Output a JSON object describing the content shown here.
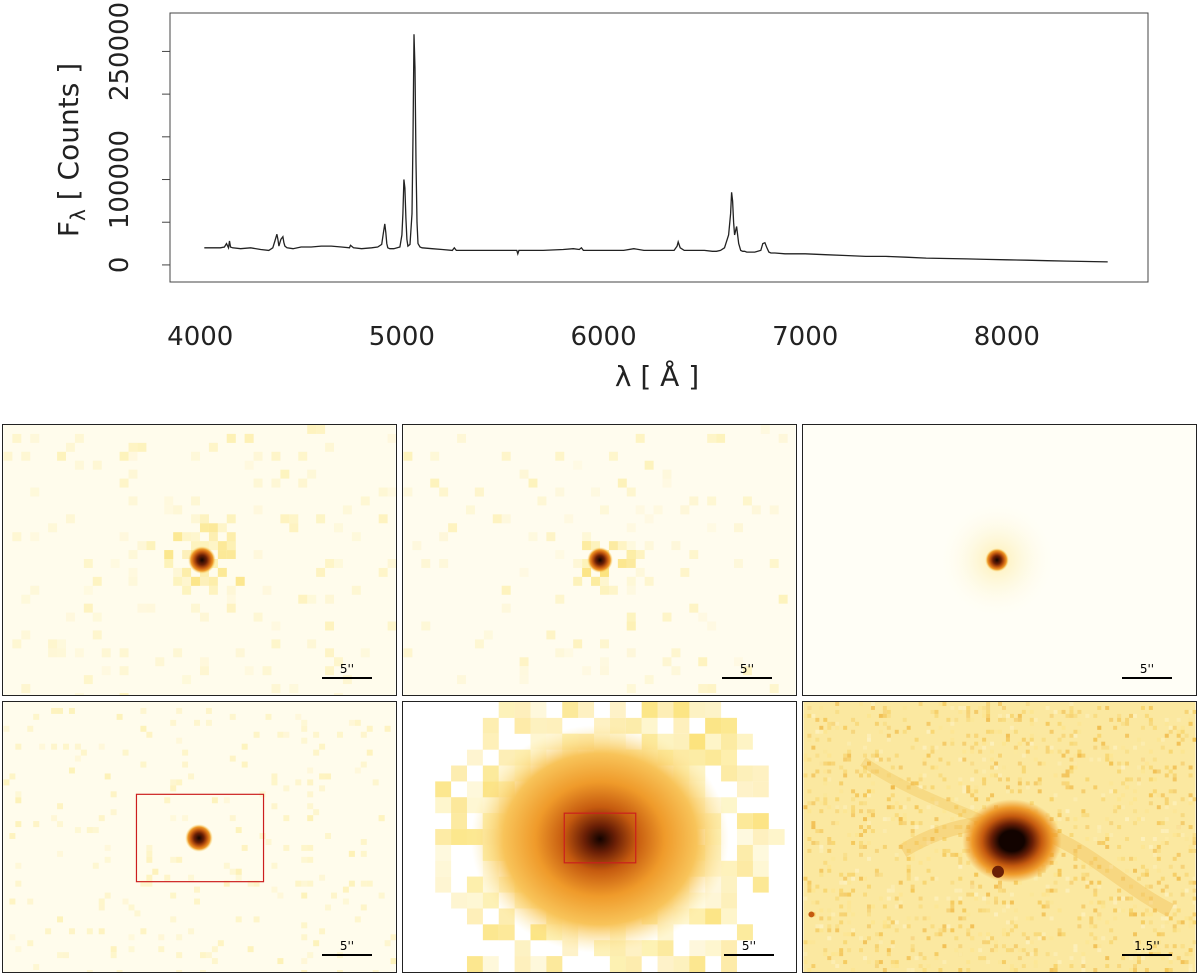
{
  "chart_data": {
    "type": "line",
    "xlabel": "λ [ Å ]",
    "ylabel_main": "F",
    "ylabel_sub": "λ",
    "ylabel_rest": " [ Counts ]",
    "xlim": [
      3850,
      8700
    ],
    "ylim": [
      -20000,
      295000
    ],
    "xticks": [
      4000,
      5000,
      6000,
      7000,
      8000
    ],
    "yticks": [
      0,
      100000,
      250000
    ],
    "yticks_minor": [
      50000,
      150000,
      200000
    ],
    "series": [
      {
        "x": [
          4020,
          4060,
          4100,
          4120,
          4130,
          4140,
          4145,
          4150,
          4160,
          4200,
          4250,
          4300,
          4340,
          4360,
          4370,
          4380,
          4385,
          4390,
          4400,
          4410,
          4415,
          4420,
          4430,
          4460,
          4500,
          4550,
          4600,
          4650,
          4700,
          4740,
          4745,
          4760,
          4800,
          4850,
          4880,
          4900,
          4910,
          4915,
          4920,
          4925,
          4930,
          4940,
          4960,
          4990,
          5000,
          5005,
          5010,
          5015,
          5020,
          5025,
          5030,
          5040,
          5050,
          5055,
          5060,
          5065,
          5070,
          5075,
          5080,
          5090,
          5100,
          5150,
          5200,
          5250,
          5260,
          5270,
          5300,
          5400,
          5500,
          5570,
          5575,
          5580,
          5600,
          5700,
          5800,
          5850,
          5880,
          5890,
          5900,
          5950,
          6000,
          6100,
          6150,
          6200,
          6300,
          6350,
          6365,
          6370,
          6380,
          6400,
          6500,
          6540,
          6560,
          6580,
          6600,
          6620,
          6630,
          6635,
          6640,
          6645,
          6650,
          6660,
          6670,
          6680,
          6690,
          6700,
          6710,
          6720,
          6750,
          6780,
          6790,
          6800,
          6810,
          6820,
          6830,
          6850,
          6900,
          7000,
          7100,
          7200,
          7300,
          7400,
          7500,
          7600,
          7700,
          7800,
          7900,
          8000,
          8100,
          8200,
          8300,
          8400,
          8500
        ],
        "y": [
          20000,
          20000,
          20000,
          21000,
          25000,
          20000,
          28000,
          21000,
          20000,
          19000,
          20000,
          18000,
          17000,
          20000,
          28000,
          36000,
          30000,
          22000,
          30000,
          33000,
          26000,
          22000,
          20000,
          19000,
          21000,
          21000,
          22000,
          22000,
          21000,
          20000,
          23000,
          20000,
          19000,
          20000,
          21000,
          24000,
          40000,
          48000,
          38000,
          25000,
          20000,
          19000,
          19000,
          21000,
          35000,
          60000,
          100000,
          90000,
          55000,
          30000,
          22000,
          24000,
          60000,
          150000,
          270000,
          230000,
          120000,
          50000,
          25000,
          21000,
          20000,
          19000,
          18000,
          17000,
          20000,
          17000,
          17000,
          17000,
          17000,
          17000,
          13000,
          17000,
          17000,
          17000,
          18000,
          19000,
          18000,
          20000,
          17000,
          17000,
          17000,
          17000,
          19000,
          17000,
          17000,
          17000,
          22000,
          27000,
          20000,
          17000,
          17000,
          16000,
          16000,
          17000,
          20000,
          35000,
          60000,
          85000,
          75000,
          50000,
          35000,
          45000,
          25000,
          17000,
          16000,
          16000,
          15000,
          15000,
          15000,
          17000,
          25000,
          26000,
          20000,
          15000,
          14000,
          14000,
          13000,
          13000,
          12000,
          11000,
          10000,
          10000,
          9000,
          8000,
          7500,
          7000,
          6500,
          6000,
          5500,
          5000,
          4500,
          4000,
          3500
        ]
      }
    ]
  },
  "panels": [
    {
      "scale_label": "5''",
      "style": "faint"
    },
    {
      "scale_label": "5''",
      "style": "faint"
    },
    {
      "scale_label": "5''",
      "style": "smooth"
    },
    {
      "scale_label": "5''",
      "style": "boxed"
    },
    {
      "scale_label": "5''",
      "style": "zoom"
    },
    {
      "scale_label": "1.5''",
      "style": "hires"
    }
  ],
  "colors": {
    "background_light": "#fffbe8",
    "pale_yellow": "#fdf0b0",
    "yellow": "#fbe27a",
    "orange": "#ef9a2a",
    "dark_orange": "#c55a0f",
    "brown": "#6a1f06",
    "core": "#120300",
    "box_red": "#cc1e1e",
    "line": "#222222"
  }
}
